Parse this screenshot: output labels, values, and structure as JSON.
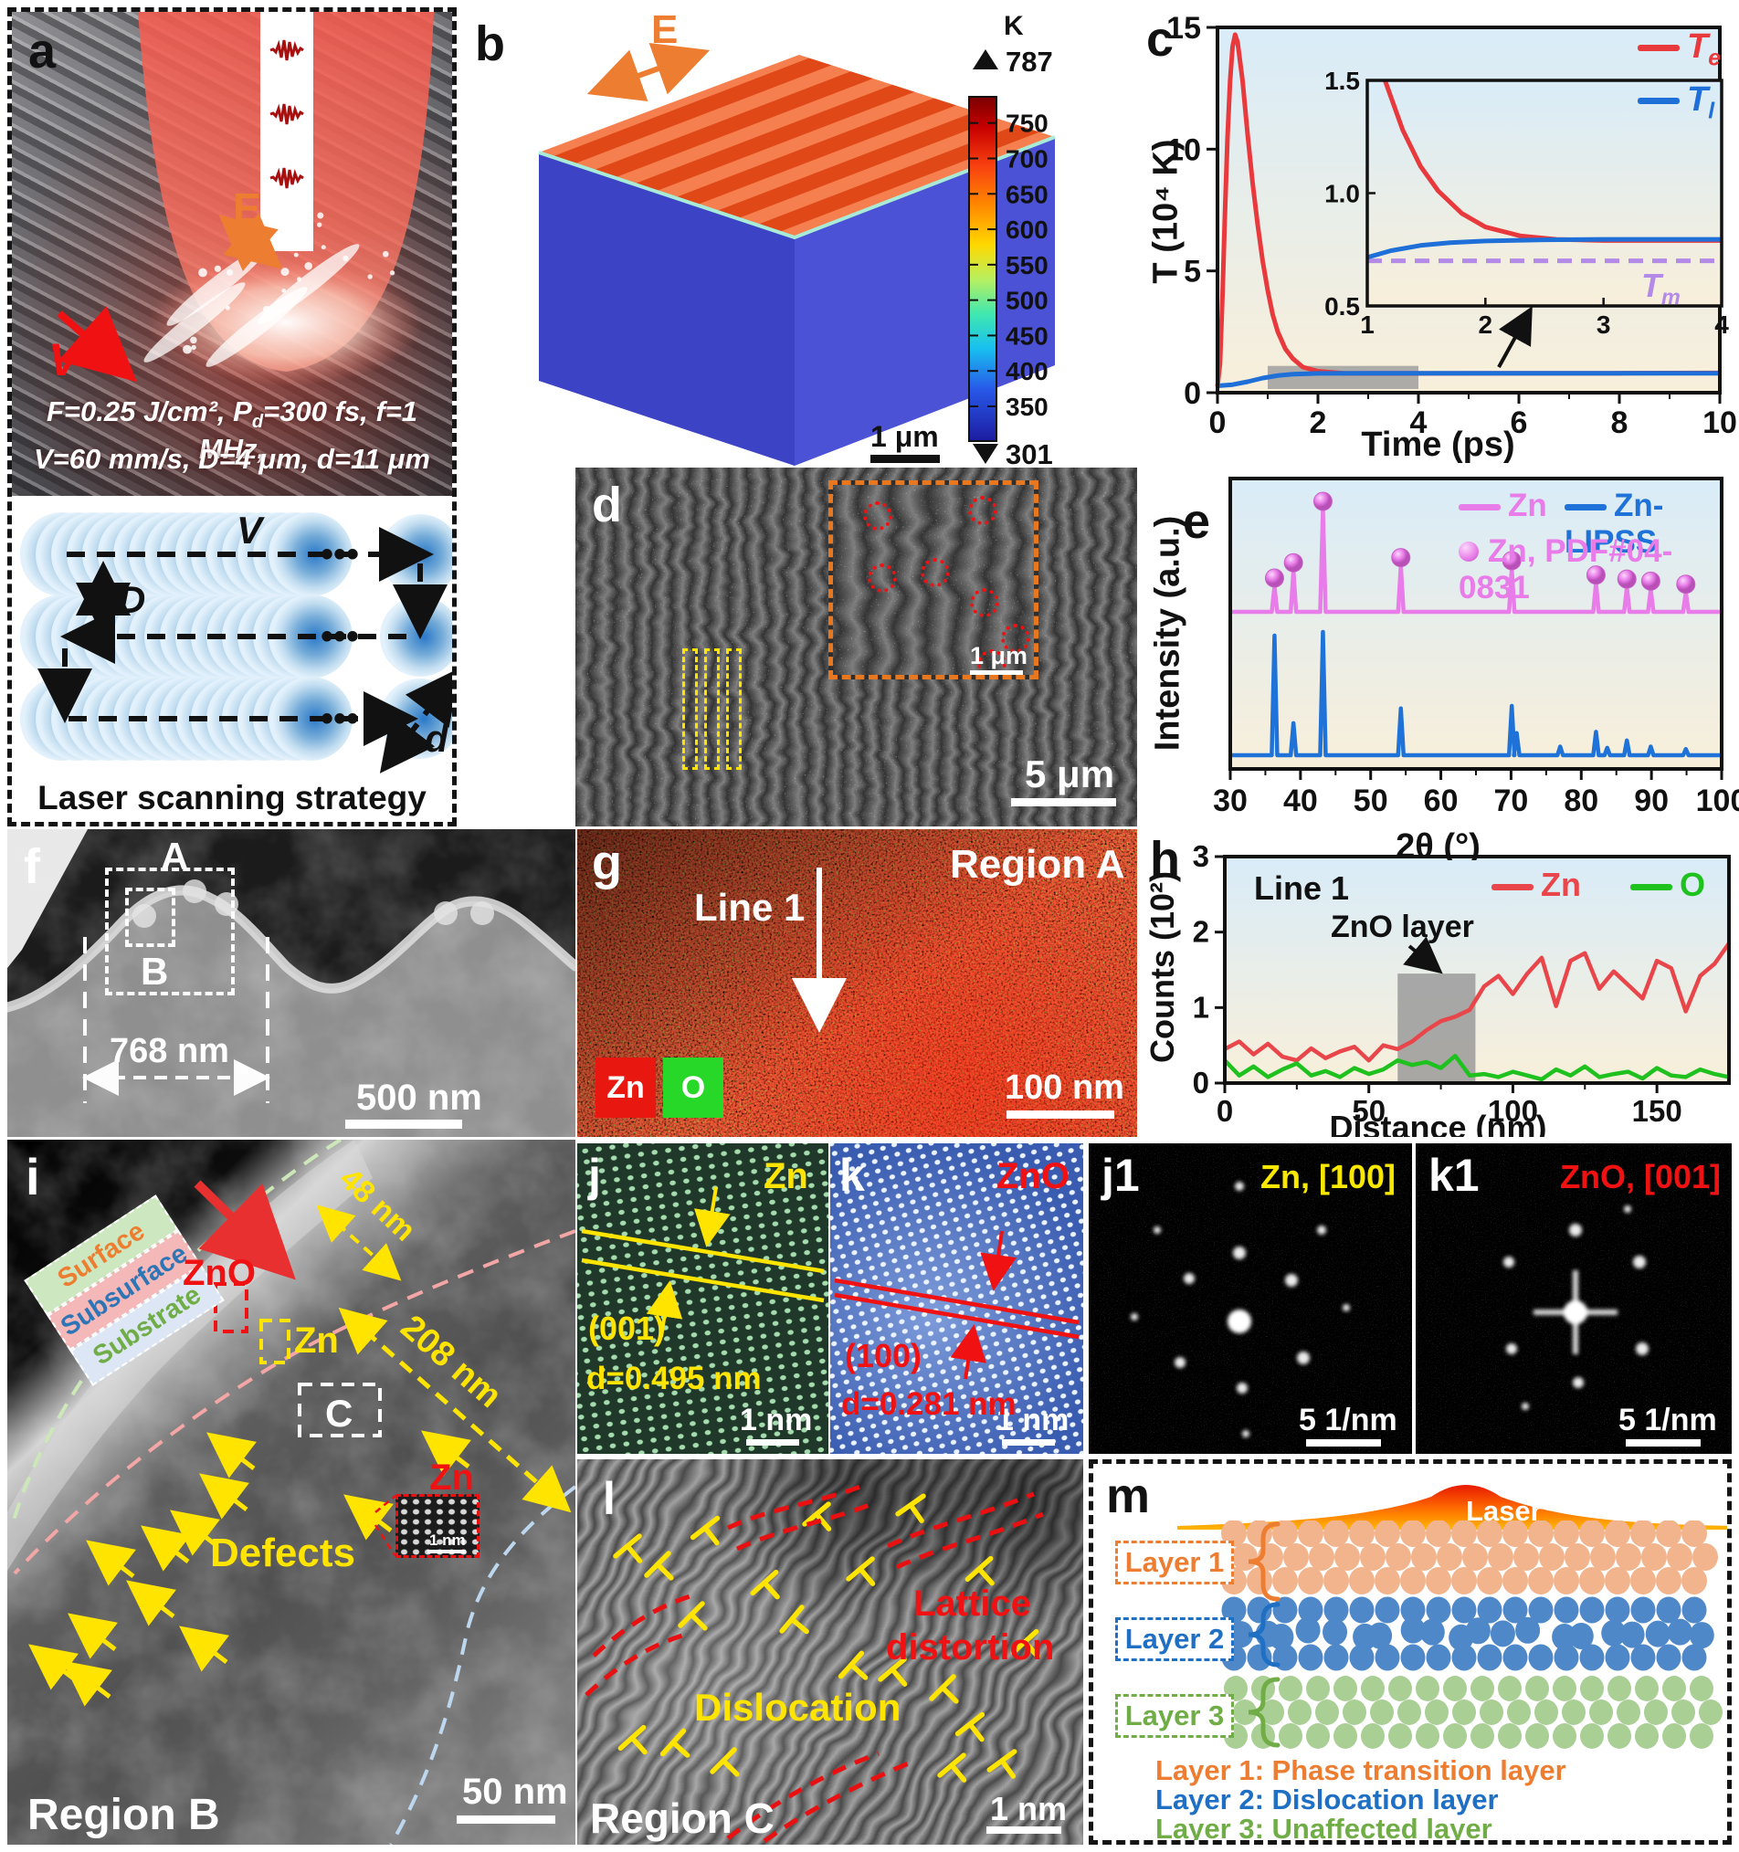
{
  "panel_a": {
    "label": "a",
    "e_label": "E",
    "v_label": "V",
    "params1_pre": "F=0.25 J/cm², P",
    "params1_sub": "d",
    "params1_post": "=300 fs, f=1 MHz,",
    "params2": "V=60 mm/s, D=4 μm, d=11 μm"
  },
  "scanning": {
    "v_label": "V",
    "D_label": "D",
    "d_label": "d",
    "dots": "•••",
    "caption": "Laser scanning strategy"
  },
  "panel_b": {
    "label": "b",
    "e_label": "E",
    "unit": "K",
    "tmax": "787",
    "tmin": "301",
    "cb_ticks": [
      "750",
      "700",
      "650",
      "600",
      "550",
      "500",
      "450",
      "400",
      "350"
    ],
    "scalebar": "1 μm"
  },
  "panel_c": {
    "label": "c",
    "legend": [
      {
        "base": "T",
        "sub": "e"
      },
      {
        "base": "T",
        "sub": "l"
      }
    ],
    "tm": {
      "base": "T",
      "sub": "m"
    },
    "chart_data": {
      "type": "line",
      "xlabel": "Time (ps)",
      "ylabel": "T (10⁴ K)",
      "xlim": [
        0,
        10
      ],
      "ylim": [
        0,
        15
      ],
      "xticks": [
        0,
        2,
        4,
        6,
        8,
        10
      ],
      "yticks": [
        0,
        5,
        10,
        15
      ],
      "series": [
        {
          "name": "Te",
          "color": "#e8393d",
          "points": [
            [
              0,
              0.25
            ],
            [
              0.05,
              1.2
            ],
            [
              0.1,
              4
            ],
            [
              0.15,
              7.5
            ],
            [
              0.2,
              10.5
            ],
            [
              0.25,
              12.8
            ],
            [
              0.3,
              14.2
            ],
            [
              0.35,
              14.7
            ],
            [
              0.4,
              14.4
            ],
            [
              0.5,
              12.8
            ],
            [
              0.6,
              10.6
            ],
            [
              0.7,
              8.6
            ],
            [
              0.8,
              6.9
            ],
            [
              0.9,
              5.4
            ],
            [
              1,
              4.2
            ],
            [
              1.1,
              3.2
            ],
            [
              1.2,
              2.5
            ],
            [
              1.35,
              1.8
            ],
            [
              1.5,
              1.4
            ],
            [
              1.7,
              1.05
            ],
            [
              2,
              0.88
            ],
            [
              2.5,
              0.8
            ],
            [
              3,
              0.79
            ],
            [
              4,
              0.79
            ],
            [
              6,
              0.8
            ],
            [
              8,
              0.8
            ],
            [
              10,
              0.81
            ]
          ]
        },
        {
          "name": "Tl",
          "color": "#1e6fd8",
          "points": [
            [
              0,
              0.28
            ],
            [
              0.3,
              0.33
            ],
            [
              0.6,
              0.45
            ],
            [
              0.9,
              0.6
            ],
            [
              1.2,
              0.7
            ],
            [
              1.5,
              0.76
            ],
            [
              2,
              0.79
            ],
            [
              3,
              0.8
            ],
            [
              4,
              0.8
            ],
            [
              6,
              0.8
            ],
            [
              8,
              0.8
            ],
            [
              10,
              0.8
            ]
          ]
        }
      ],
      "highlight_box": {
        "x": [
          1,
          4
        ],
        "y": [
          0.15,
          1.1
        ]
      },
      "inset": {
        "xlim": [
          1,
          4
        ],
        "ylim": [
          0.5,
          1.5
        ],
        "xticks": [
          "1",
          "2",
          "3",
          "4"
        ],
        "yticks": [
          "0.5",
          "1.0",
          "1.5"
        ],
        "series": [
          {
            "name": "Te",
            "color": "#e8393d",
            "points": [
              [
                1.15,
                1.5
              ],
              [
                1.3,
                1.28
              ],
              [
                1.45,
                1.12
              ],
              [
                1.6,
                1.01
              ],
              [
                1.8,
                0.91
              ],
              [
                2,
                0.85
              ],
              [
                2.3,
                0.81
              ],
              [
                2.6,
                0.795
              ],
              [
                3,
                0.79
              ],
              [
                3.5,
                0.79
              ],
              [
                4,
                0.79
              ]
            ]
          },
          {
            "name": "Tl",
            "color": "#1e6fd8",
            "points": [
              [
                1,
                0.715
              ],
              [
                1.2,
                0.745
              ],
              [
                1.45,
                0.768
              ],
              [
                1.7,
                0.78
              ],
              [
                2,
                0.788
              ],
              [
                2.5,
                0.793
              ],
              [
                3,
                0.795
              ],
              [
                4,
                0.795
              ]
            ]
          }
        ],
        "tm_value": 0.7,
        "tm_color": "#b38ae8"
      }
    }
  },
  "panel_d": {
    "label": "d",
    "scalebar": "5 μm",
    "inset_scalebar": "1 μm"
  },
  "panel_e": {
    "label": "e",
    "legend_zn": "Zn",
    "legend_lipss": "Zn-LIPSS",
    "legend_pdf": "Zn, PDF#04-0831",
    "chart_data": {
      "type": "xrd-sticks",
      "xlabel": "2θ (°)",
      "ylabel": "Intensity (a.u.)",
      "xlim": [
        30,
        100
      ],
      "xticks": [
        30,
        40,
        50,
        60,
        70,
        80,
        90,
        100
      ],
      "series": [
        {
          "name": "Zn",
          "color": "#e87ce8",
          "marker": "ball",
          "peaks": [
            [
              36.3,
              0.25
            ],
            [
              39.0,
              0.4
            ],
            [
              43.2,
              1.0
            ],
            [
              54.3,
              0.45
            ],
            [
              70.1,
              0.42
            ],
            [
              82.1,
              0.28
            ],
            [
              86.5,
              0.24
            ],
            [
              89.9,
              0.22
            ],
            [
              94.9,
              0.19
            ]
          ]
        },
        {
          "name": "Zn-LIPSS",
          "color": "#1f72d8",
          "peaks": [
            [
              36.3,
              0.97
            ],
            [
              39.0,
              0.26
            ],
            [
              43.2,
              1.0
            ],
            [
              54.3,
              0.38
            ],
            [
              70.1,
              0.4
            ],
            [
              70.8,
              0.18
            ],
            [
              77.0,
              0.07
            ],
            [
              82.1,
              0.19
            ],
            [
              83.7,
              0.06
            ],
            [
              86.5,
              0.12
            ],
            [
              89.9,
              0.07
            ],
            [
              94.9,
              0.05
            ]
          ]
        }
      ]
    }
  },
  "panel_f": {
    "label": "f",
    "box_a": "A",
    "box_b": "B",
    "width_label": "768 nm",
    "scalebar": "500 nm"
  },
  "panel_g": {
    "label": "g",
    "region": "Region A",
    "line": "Line 1",
    "zn": "Zn",
    "o": "O",
    "scalebar": "100 nm",
    "zn_color": "#e81810",
    "o_color": "#28d828"
  },
  "panel_h": {
    "label": "h",
    "line": "Line 1",
    "annotation": "ZnO layer",
    "chart_data": {
      "type": "line",
      "xlabel": "Distance (nm)",
      "ylabel": "Counts (10²)",
      "xlim": [
        0,
        175
      ],
      "ylim": [
        0,
        3
      ],
      "xticks": [
        0,
        50,
        100,
        150
      ],
      "yticks": [
        0,
        1,
        2,
        3
      ],
      "x_start": 0,
      "x_step": 5,
      "series": [
        {
          "name": "Zn",
          "color": "#e8464a",
          "values": [
            0.45,
            0.55,
            0.38,
            0.52,
            0.35,
            0.3,
            0.46,
            0.33,
            0.42,
            0.48,
            0.3,
            0.5,
            0.45,
            0.55,
            0.7,
            0.82,
            0.88,
            0.97,
            1.28,
            1.42,
            1.18,
            1.45,
            1.66,
            1.02,
            1.62,
            1.72,
            1.25,
            1.48,
            1.3,
            1.12,
            1.62,
            1.52,
            0.95,
            1.42,
            1.58,
            1.85
          ]
        },
        {
          "name": "O",
          "color": "#1fc11f",
          "values": [
            0.3,
            0.1,
            0.22,
            0.08,
            0.18,
            0.26,
            0.1,
            0.16,
            0.08,
            0.2,
            0.12,
            0.18,
            0.3,
            0.24,
            0.28,
            0.2,
            0.36,
            0.1,
            0.12,
            0.08,
            0.15,
            0.1,
            0.05,
            0.18,
            0.1,
            0.22,
            0.08,
            0.12,
            0.15,
            0.06,
            0.2,
            0.1,
            0.08,
            0.18,
            0.12,
            0.08
          ]
        }
      ],
      "zno_band": [
        60,
        87
      ]
    }
  },
  "panel_i": {
    "label": "i",
    "surface": "Surface",
    "subsurface": "Subsurface",
    "substrate": "Substrate",
    "zno": "ZnO",
    "zn": "Zn",
    "d48": "48 nm",
    "d208": "208 nm",
    "c_box": "C",
    "defects": "Defects",
    "region": "Region B",
    "zn_inset": "Zn",
    "inset_scalebar": "1 nm",
    "scalebar": "50 nm",
    "colors": {
      "surface_text": "#ed7d31",
      "surface_bg": "#cde8c0",
      "subsurface_text": "#2e75b6",
      "subsurface_bg": "#f4b8b8",
      "substrate_text": "#70ad47",
      "substrate_bg": "#dce6f4"
    }
  },
  "panel_j": {
    "label": "j",
    "material": "Zn",
    "plane": "(001)",
    "dspacing": "d=0.495 nm",
    "scalebar": "1 nm"
  },
  "panel_k": {
    "label": "k",
    "material": "ZnO",
    "plane": "(100)",
    "dspacing": "d=0.281 nm",
    "scalebar": "1 nm"
  },
  "panel_j1": {
    "label": "j1",
    "caption": "Zn, [100]",
    "scalebar": "5 1/nm"
  },
  "panel_k1": {
    "label": "k1",
    "caption": "ZnO, [001]",
    "scalebar": "5 1/nm"
  },
  "panel_l": {
    "label": "l",
    "region": "Region C",
    "dislocation": "Dislocation",
    "distortion_1": "Lattice",
    "distortion_2": "distortion",
    "scalebar": "1 nm"
  },
  "panel_m": {
    "label": "m",
    "laser": "Laser",
    "layers": [
      {
        "name": "Layer 1",
        "desc": "Layer 1: Phase transition layer",
        "color": "#ed7d31",
        "atom": "#f2b48c"
      },
      {
        "name": "Layer 2",
        "desc": "Layer 2: Dislocation layer",
        "color": "#1f6fc4",
        "atom": "#4e88c8"
      },
      {
        "name": "Layer 3",
        "desc": "Layer 3: Unaffected layer",
        "color": "#70ad47",
        "atom": "#a9cf95"
      }
    ]
  }
}
